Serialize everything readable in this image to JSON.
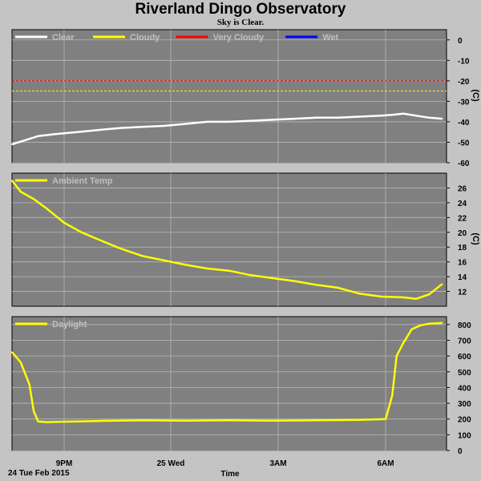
{
  "title": "Riverland Dingo Observatory",
  "subtitle": "Sky is Clear.",
  "footer": {
    "date_label": "24 Tue Feb 2015",
    "x_axis_label": "Time"
  },
  "x_ticks": [
    "9PM",
    "25 Wed",
    "3AM",
    "6AM"
  ],
  "colors": {
    "background": "#c4c4c4",
    "plot_bg": "#808080",
    "grid": "#b8b8b8",
    "clear": "#ffffff",
    "cloudy": "#ffff00",
    "very_cloudy": "#ff0000",
    "wet": "#0000ff",
    "legend_text": "#c0c0c0"
  },
  "chart_data": [
    {
      "type": "line",
      "name": "sky",
      "legend": [
        {
          "label": "Clear",
          "color": "#ffffff"
        },
        {
          "label": "Cloudy",
          "color": "#ffff00"
        },
        {
          "label": "Very Cloudy",
          "color": "#ff0000"
        },
        {
          "label": "Wet",
          "color": "#0000ff"
        }
      ],
      "ylabel": "(C)",
      "ylim": [
        -60,
        5
      ],
      "yticks": [
        0,
        -10,
        -20,
        -30,
        -40,
        -50,
        -60
      ],
      "xlim": [
        0,
        10
      ],
      "thresholds": [
        {
          "value": -20,
          "color": "#ff0000"
        },
        {
          "value": -25,
          "color": "#ffff00"
        }
      ],
      "series": [
        {
          "name": "Clear",
          "color": "#ffffff",
          "x": [
            0,
            0.3,
            0.6,
            1.0,
            1.5,
            2.0,
            2.5,
            3.0,
            3.5,
            4.0,
            4.5,
            5.0,
            5.5,
            6.0,
            6.5,
            7.0,
            7.5,
            8.0,
            8.5,
            8.8,
            9.0,
            9.3,
            9.6,
            9.9
          ],
          "y": [
            -51,
            -49,
            -47,
            -46,
            -45,
            -44,
            -43,
            -42.5,
            -42,
            -41,
            -40,
            -40,
            -39.5,
            -39,
            -38.5,
            -38,
            -38,
            -37.5,
            -37,
            -36.5,
            -36,
            -37,
            -38,
            -38.5
          ]
        }
      ]
    },
    {
      "type": "line",
      "name": "ambient",
      "legend": [
        {
          "label": "Ambient Temp",
          "color": "#ffff00"
        }
      ],
      "ylabel": "(C)",
      "ylim": [
        10,
        28
      ],
      "yticks": [
        26,
        24,
        22,
        20,
        18,
        16,
        14,
        12
      ],
      "xlim": [
        0,
        10
      ],
      "series": [
        {
          "name": "Ambient Temp",
          "color": "#ffff00",
          "x": [
            0,
            0.2,
            0.5,
            0.8,
            1.2,
            1.6,
            2.0,
            2.5,
            3.0,
            3.5,
            4.0,
            4.5,
            5.0,
            5.5,
            6.0,
            6.5,
            7.0,
            7.5,
            8.0,
            8.5,
            9.0,
            9.3,
            9.6,
            9.9
          ],
          "y": [
            27,
            25.5,
            24.5,
            23.2,
            21.3,
            20,
            19,
            17.8,
            16.8,
            16.2,
            15.6,
            15.1,
            14.8,
            14.2,
            13.8,
            13.4,
            12.9,
            12.5,
            11.7,
            11.3,
            11.2,
            11.0,
            11.6,
            13.0
          ]
        }
      ]
    },
    {
      "type": "line",
      "name": "daylight",
      "legend": [
        {
          "label": "Daylight",
          "color": "#ffff00"
        }
      ],
      "ylabel": "",
      "ylim": [
        0,
        850
      ],
      "yticks": [
        800,
        700,
        600,
        500,
        400,
        300,
        200,
        100,
        0
      ],
      "xlim": [
        0,
        10
      ],
      "series": [
        {
          "name": "Daylight",
          "color": "#ffff00",
          "x": [
            0,
            0.2,
            0.4,
            0.5,
            0.6,
            0.8,
            1.0,
            1.5,
            2.0,
            3.0,
            4.0,
            5.0,
            6.0,
            7.0,
            8.0,
            8.6,
            8.75,
            8.85,
            9.0,
            9.2,
            9.4,
            9.6,
            9.9
          ],
          "y": [
            625,
            560,
            420,
            250,
            185,
            180,
            182,
            185,
            188,
            192,
            190,
            192,
            190,
            192,
            195,
            200,
            350,
            600,
            680,
            770,
            795,
            805,
            810
          ]
        }
      ]
    }
  ]
}
